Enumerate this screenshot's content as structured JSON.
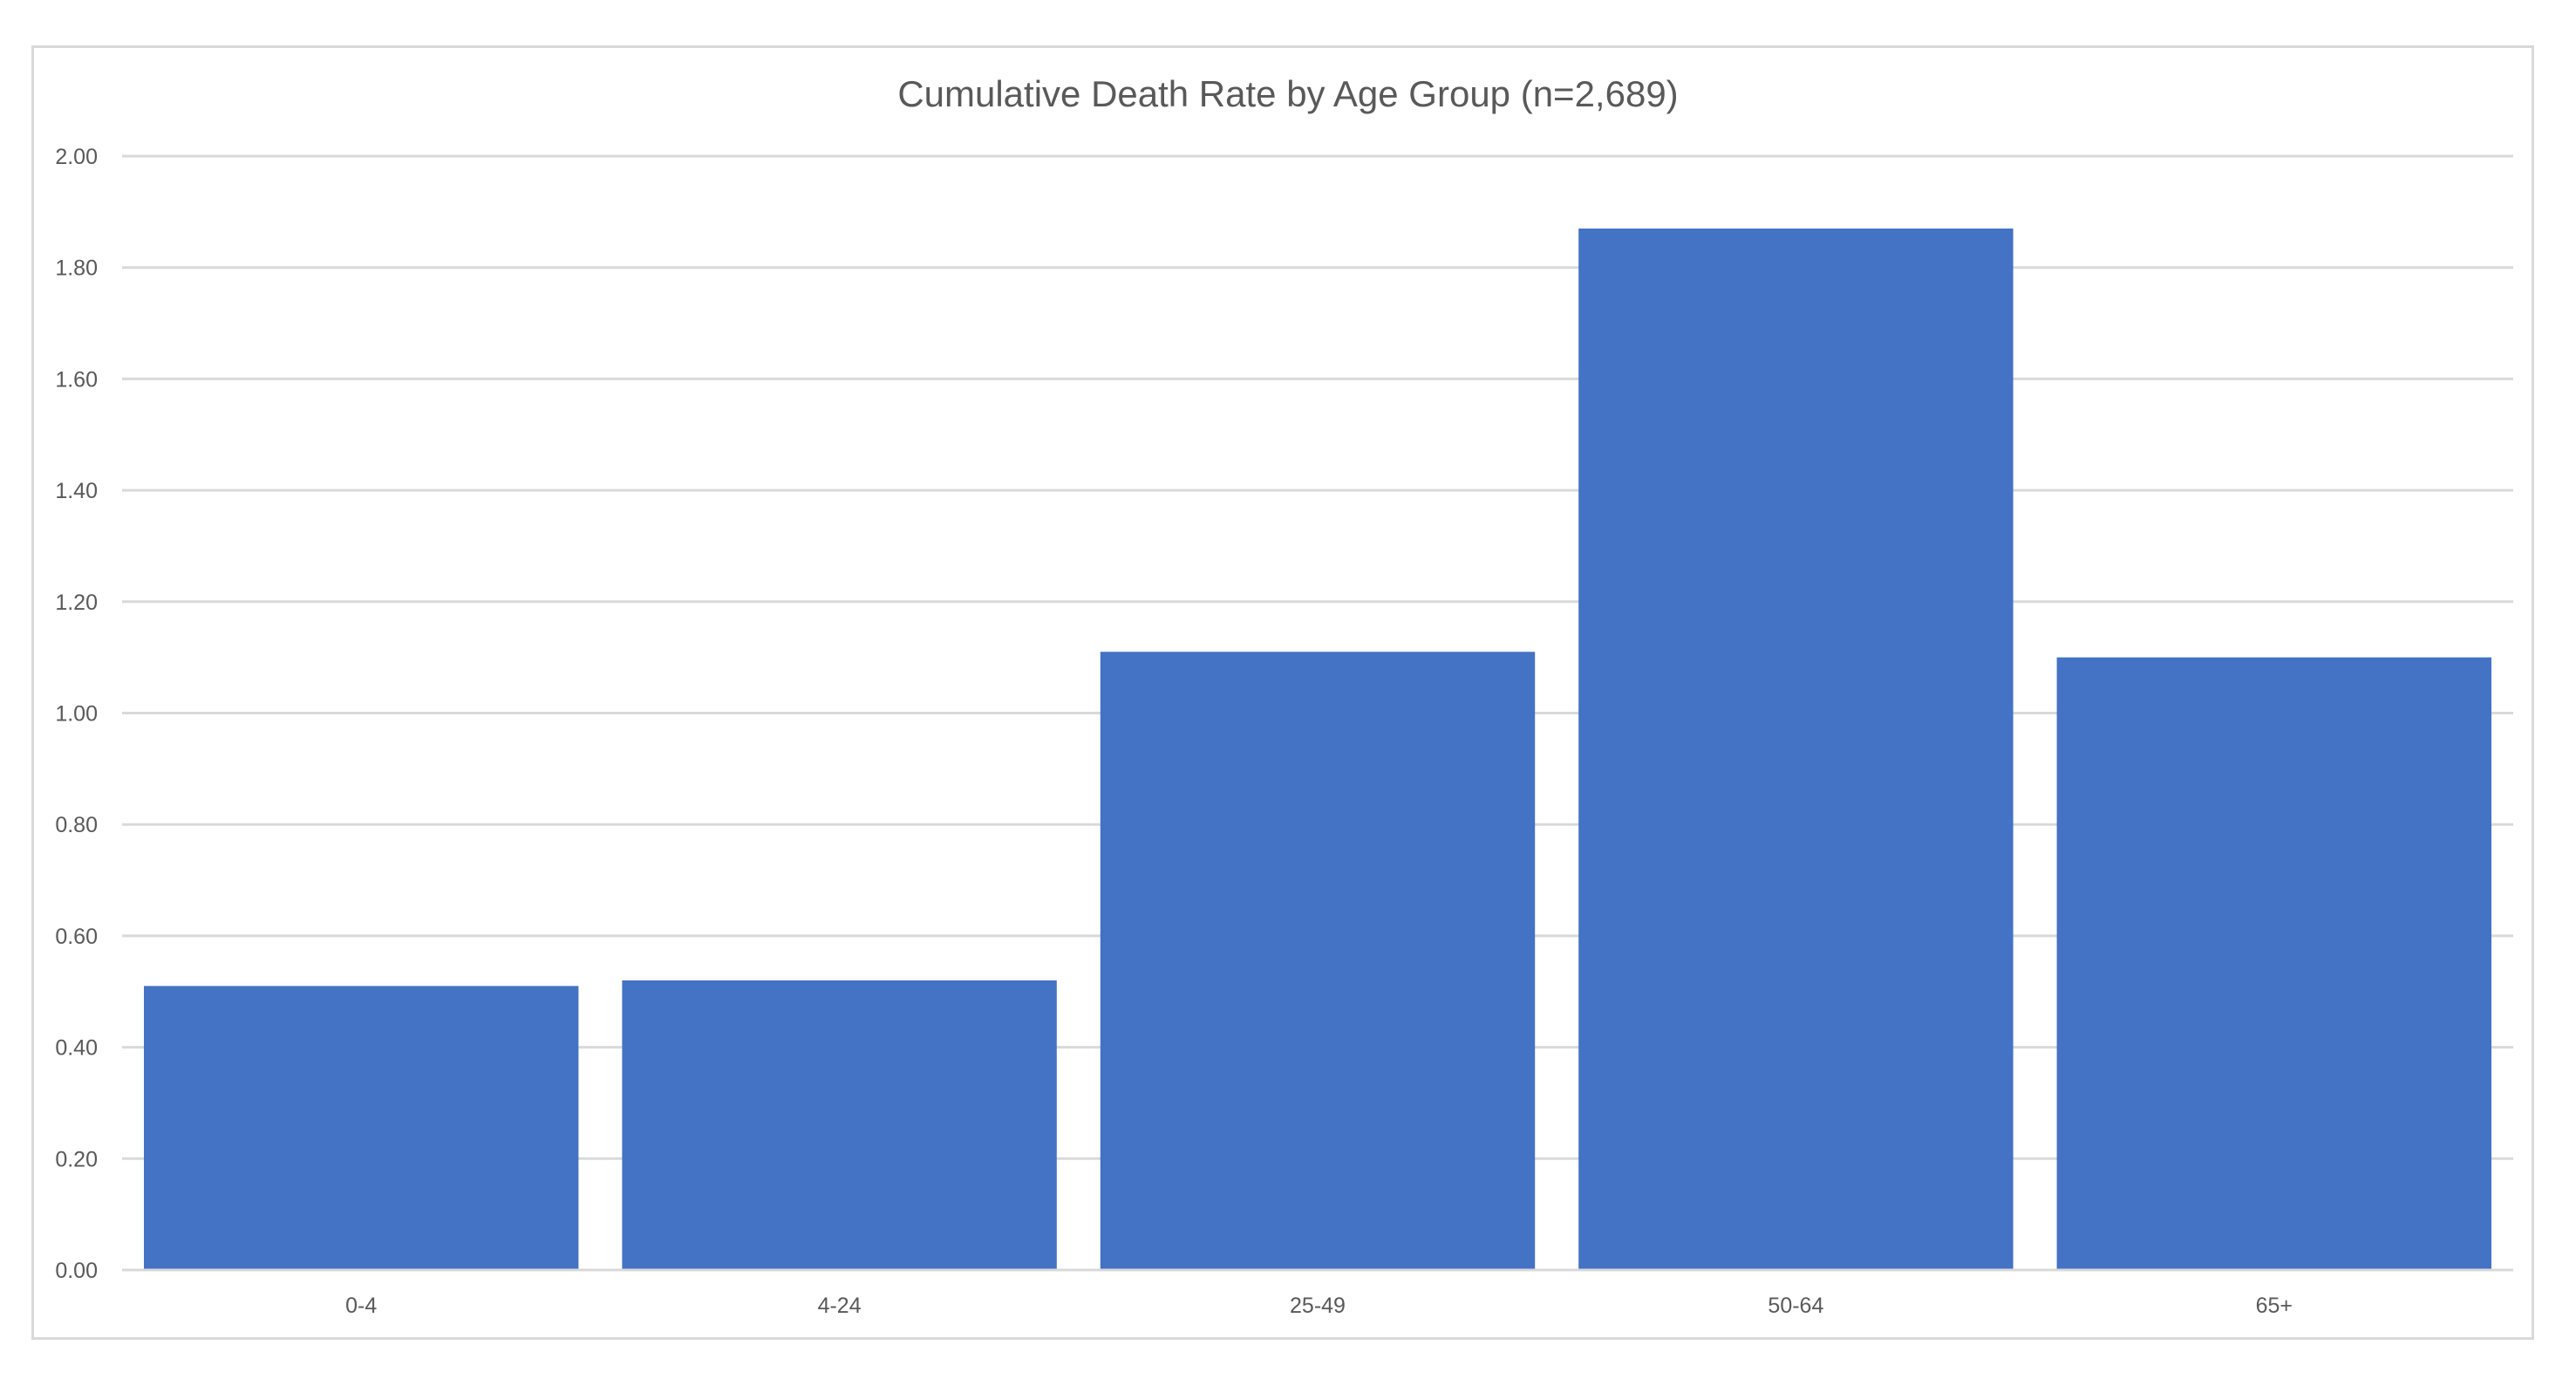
{
  "chart_data": {
    "type": "bar",
    "title": "Cumulative Death Rate by Age Group (n=2,689)",
    "xlabel": "",
    "ylabel": "",
    "categories": [
      "0-4",
      "4-24",
      "25-49",
      "50-64",
      "65+"
    ],
    "values": [
      0.51,
      0.52,
      1.11,
      1.87,
      1.1
    ],
    "ylim": [
      0,
      2.0
    ],
    "yticks": [
      "0.00",
      "0.20",
      "0.40",
      "0.60",
      "0.80",
      "1.00",
      "1.20",
      "1.40",
      "1.60",
      "1.80",
      "2.00"
    ],
    "grid": true,
    "legend": "none",
    "bar_color": "#4472c4"
  }
}
